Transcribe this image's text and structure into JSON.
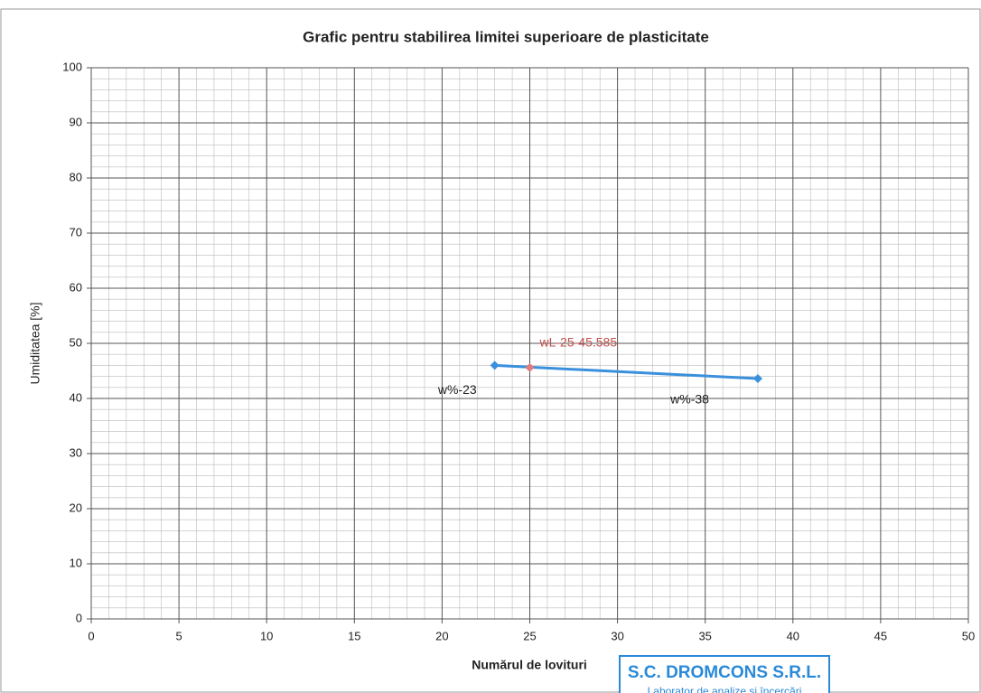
{
  "chart_data": {
    "type": "line",
    "title": "Grafic pentru stabilirea limitei superioare de plasticitate",
    "x_label": "Numărul de lovituri",
    "y_label": "Umiditatea [%]",
    "xlim": [
      0,
      50
    ],
    "xticks": [
      0,
      5,
      10,
      15,
      20,
      25,
      30,
      35,
      40,
      45,
      50
    ],
    "ylim": [
      0,
      100
    ],
    "yticks": [
      0,
      10,
      20,
      30,
      40,
      50,
      60,
      70,
      80,
      90,
      100
    ],
    "grid": true,
    "minor_grid": true,
    "series": [
      {
        "color": "#3a90dc",
        "x": [
          23,
          38
        ],
        "values": [
          46,
          43.6
        ],
        "point_labels": [
          "w%-23",
          "w%-38"
        ]
      },
      {
        "color": "#e07c7c",
        "x": [
          25
        ],
        "values": [
          45.585
        ],
        "point_labels": [
          "wL-25-45.585"
        ]
      }
    ],
    "stamp": {
      "title": "S.C. DROMCONS S.R.L.",
      "subtitle": "Laborator de analize și încercări"
    }
  }
}
